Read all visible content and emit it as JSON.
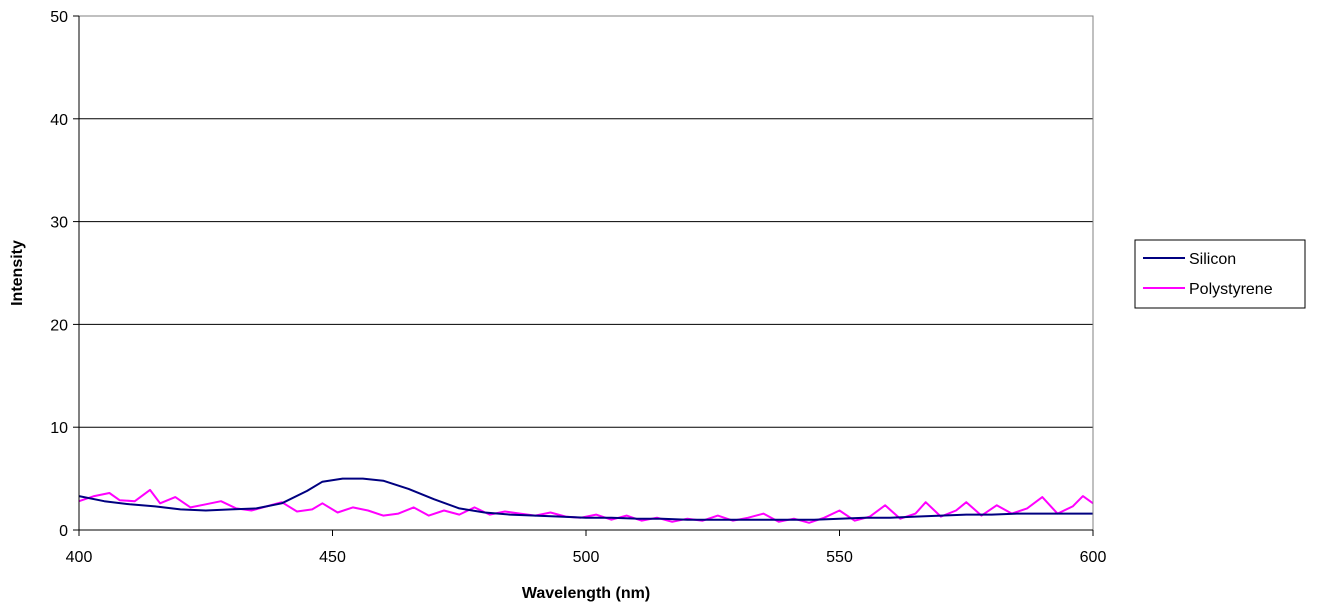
{
  "chart_data": {
    "type": "line",
    "xlabel": "Wavelength (nm)",
    "ylabel": "Intensity",
    "xlim": [
      400,
      600
    ],
    "ylim": [
      0,
      50
    ],
    "x_ticks": [
      "400",
      "450",
      "500",
      "550",
      "600"
    ],
    "y_ticks": [
      "0",
      "10",
      "20",
      "30",
      "40",
      "50"
    ],
    "grid": "horizontal",
    "legend_position": "right",
    "series": [
      {
        "name": "Silicon",
        "color": "#000080",
        "x": [
          400,
          405,
          410,
          415,
          420,
          425,
          430,
          435,
          440,
          445,
          448,
          452,
          456,
          460,
          465,
          470,
          475,
          480,
          485,
          490,
          495,
          500,
          505,
          510,
          515,
          520,
          525,
          530,
          535,
          540,
          545,
          550,
          555,
          560,
          565,
          570,
          575,
          580,
          585,
          590,
          595,
          600
        ],
        "y": [
          3.3,
          2.8,
          2.5,
          2.3,
          2.0,
          1.9,
          2.0,
          2.1,
          2.6,
          3.8,
          4.7,
          5.0,
          5.0,
          4.8,
          4.0,
          3.0,
          2.1,
          1.7,
          1.5,
          1.4,
          1.3,
          1.2,
          1.2,
          1.1,
          1.1,
          1.0,
          1.0,
          1.0,
          1.0,
          1.0,
          1.0,
          1.1,
          1.2,
          1.2,
          1.3,
          1.4,
          1.5,
          1.5,
          1.6,
          1.6,
          1.6,
          1.6
        ]
      },
      {
        "name": "Polystyrene",
        "color": "#ff00ff",
        "x": [
          400,
          403,
          406,
          408,
          411,
          414,
          416,
          419,
          422,
          425,
          428,
          431,
          434,
          437,
          440,
          443,
          446,
          448,
          451,
          454,
          457,
          460,
          463,
          466,
          469,
          472,
          475,
          478,
          481,
          484,
          487,
          490,
          493,
          496,
          499,
          502,
          505,
          508,
          511,
          514,
          517,
          520,
          523,
          526,
          529,
          532,
          535,
          538,
          541,
          544,
          547,
          550,
          553,
          556,
          559,
          562,
          565,
          567,
          570,
          573,
          575,
          578,
          581,
          584,
          587,
          590,
          593,
          596,
          598,
          600
        ],
        "y": [
          2.8,
          3.3,
          3.6,
          2.9,
          2.8,
          3.9,
          2.6,
          3.2,
          2.2,
          2.5,
          2.8,
          2.1,
          1.9,
          2.3,
          2.7,
          1.8,
          2.0,
          2.6,
          1.7,
          2.2,
          1.9,
          1.4,
          1.6,
          2.2,
          1.4,
          1.9,
          1.5,
          2.2,
          1.5,
          1.8,
          1.6,
          1.4,
          1.7,
          1.3,
          1.2,
          1.5,
          1.0,
          1.4,
          0.9,
          1.2,
          0.8,
          1.1,
          0.9,
          1.4,
          0.9,
          1.2,
          1.6,
          0.8,
          1.1,
          0.7,
          1.2,
          1.9,
          0.9,
          1.3,
          2.4,
          1.1,
          1.6,
          2.7,
          1.3,
          1.9,
          2.7,
          1.4,
          2.4,
          1.6,
          2.1,
          3.2,
          1.6,
          2.3,
          3.3,
          2.6
        ]
      }
    ]
  }
}
